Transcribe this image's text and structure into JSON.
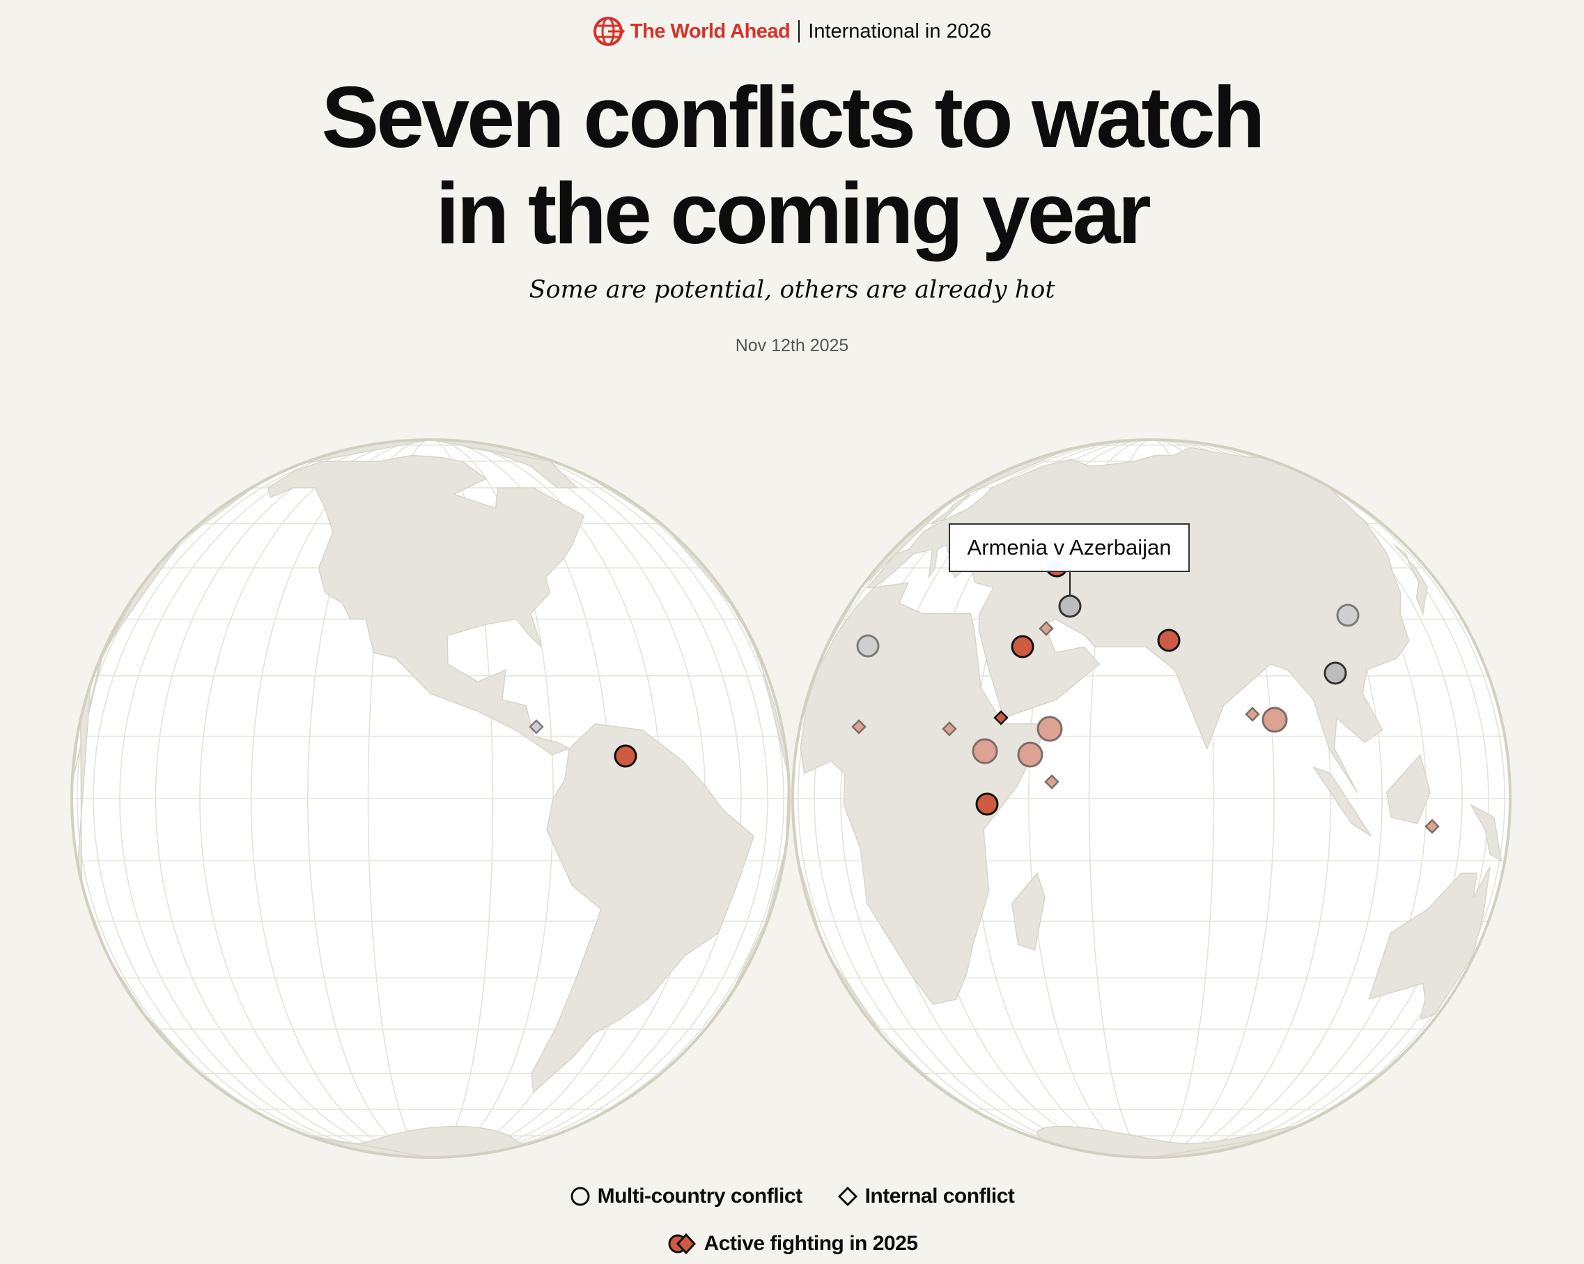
{
  "header": {
    "brand": "The World Ahead",
    "section": "International in 2026",
    "icon": "globe-arrow-icon"
  },
  "title_line1": "Seven conflicts to watch",
  "title_line2": "in the coming year",
  "subtitle": "Some are potential, others are already hot",
  "date": "Nov 12th 2025",
  "tooltip": "Armenia v Azerbaijan",
  "legend": {
    "multi_country": "Multi-country conflict",
    "internal": "Internal conflict",
    "active": "Active fighting in 2025"
  },
  "colors": {
    "active": "#cf5a42",
    "faded_active": "#dea292",
    "inactive": "#bcbcbc",
    "land": "#e6e4dc",
    "ocean": "#ffffff",
    "brand": "#d7312a",
    "background": "#f4f3ee"
  },
  "markers": [
    {
      "shape": "diamond",
      "status": "inactive-faded",
      "hemisphere": "west"
    },
    {
      "shape": "circle",
      "status": "active",
      "hemisphere": "west"
    },
    {
      "shape": "circle",
      "status": "active",
      "hemisphere": "east"
    },
    {
      "shape": "circle",
      "status": "inactive",
      "hemisphere": "east",
      "label": "Armenia v Azerbaijan"
    },
    {
      "shape": "diamond",
      "status": "active-faded",
      "hemisphere": "east"
    },
    {
      "shape": "circle",
      "status": "active",
      "hemisphere": "east"
    },
    {
      "shape": "circle",
      "status": "inactive-faded",
      "hemisphere": "east"
    },
    {
      "shape": "circle",
      "status": "active",
      "hemisphere": "east"
    },
    {
      "shape": "circle",
      "status": "inactive-faded",
      "hemisphere": "east"
    },
    {
      "shape": "circle",
      "status": "inactive",
      "hemisphere": "east"
    },
    {
      "shape": "diamond",
      "status": "active-faded",
      "hemisphere": "east"
    },
    {
      "shape": "diamond",
      "status": "active-faded",
      "hemisphere": "east"
    },
    {
      "shape": "diamond",
      "status": "active",
      "hemisphere": "east"
    },
    {
      "shape": "circle",
      "status": "active-faded",
      "hemisphere": "east"
    },
    {
      "shape": "circle",
      "status": "active-faded",
      "hemisphere": "east"
    },
    {
      "shape": "circle",
      "status": "active-faded",
      "hemisphere": "east"
    },
    {
      "shape": "diamond",
      "status": "active-faded",
      "hemisphere": "east"
    },
    {
      "shape": "circle",
      "status": "active",
      "hemisphere": "east"
    },
    {
      "shape": "diamond",
      "status": "active-faded",
      "hemisphere": "east"
    },
    {
      "shape": "circle",
      "status": "active-faded",
      "hemisphere": "east"
    },
    {
      "shape": "diamond",
      "status": "active-faded",
      "hemisphere": "east"
    }
  ]
}
